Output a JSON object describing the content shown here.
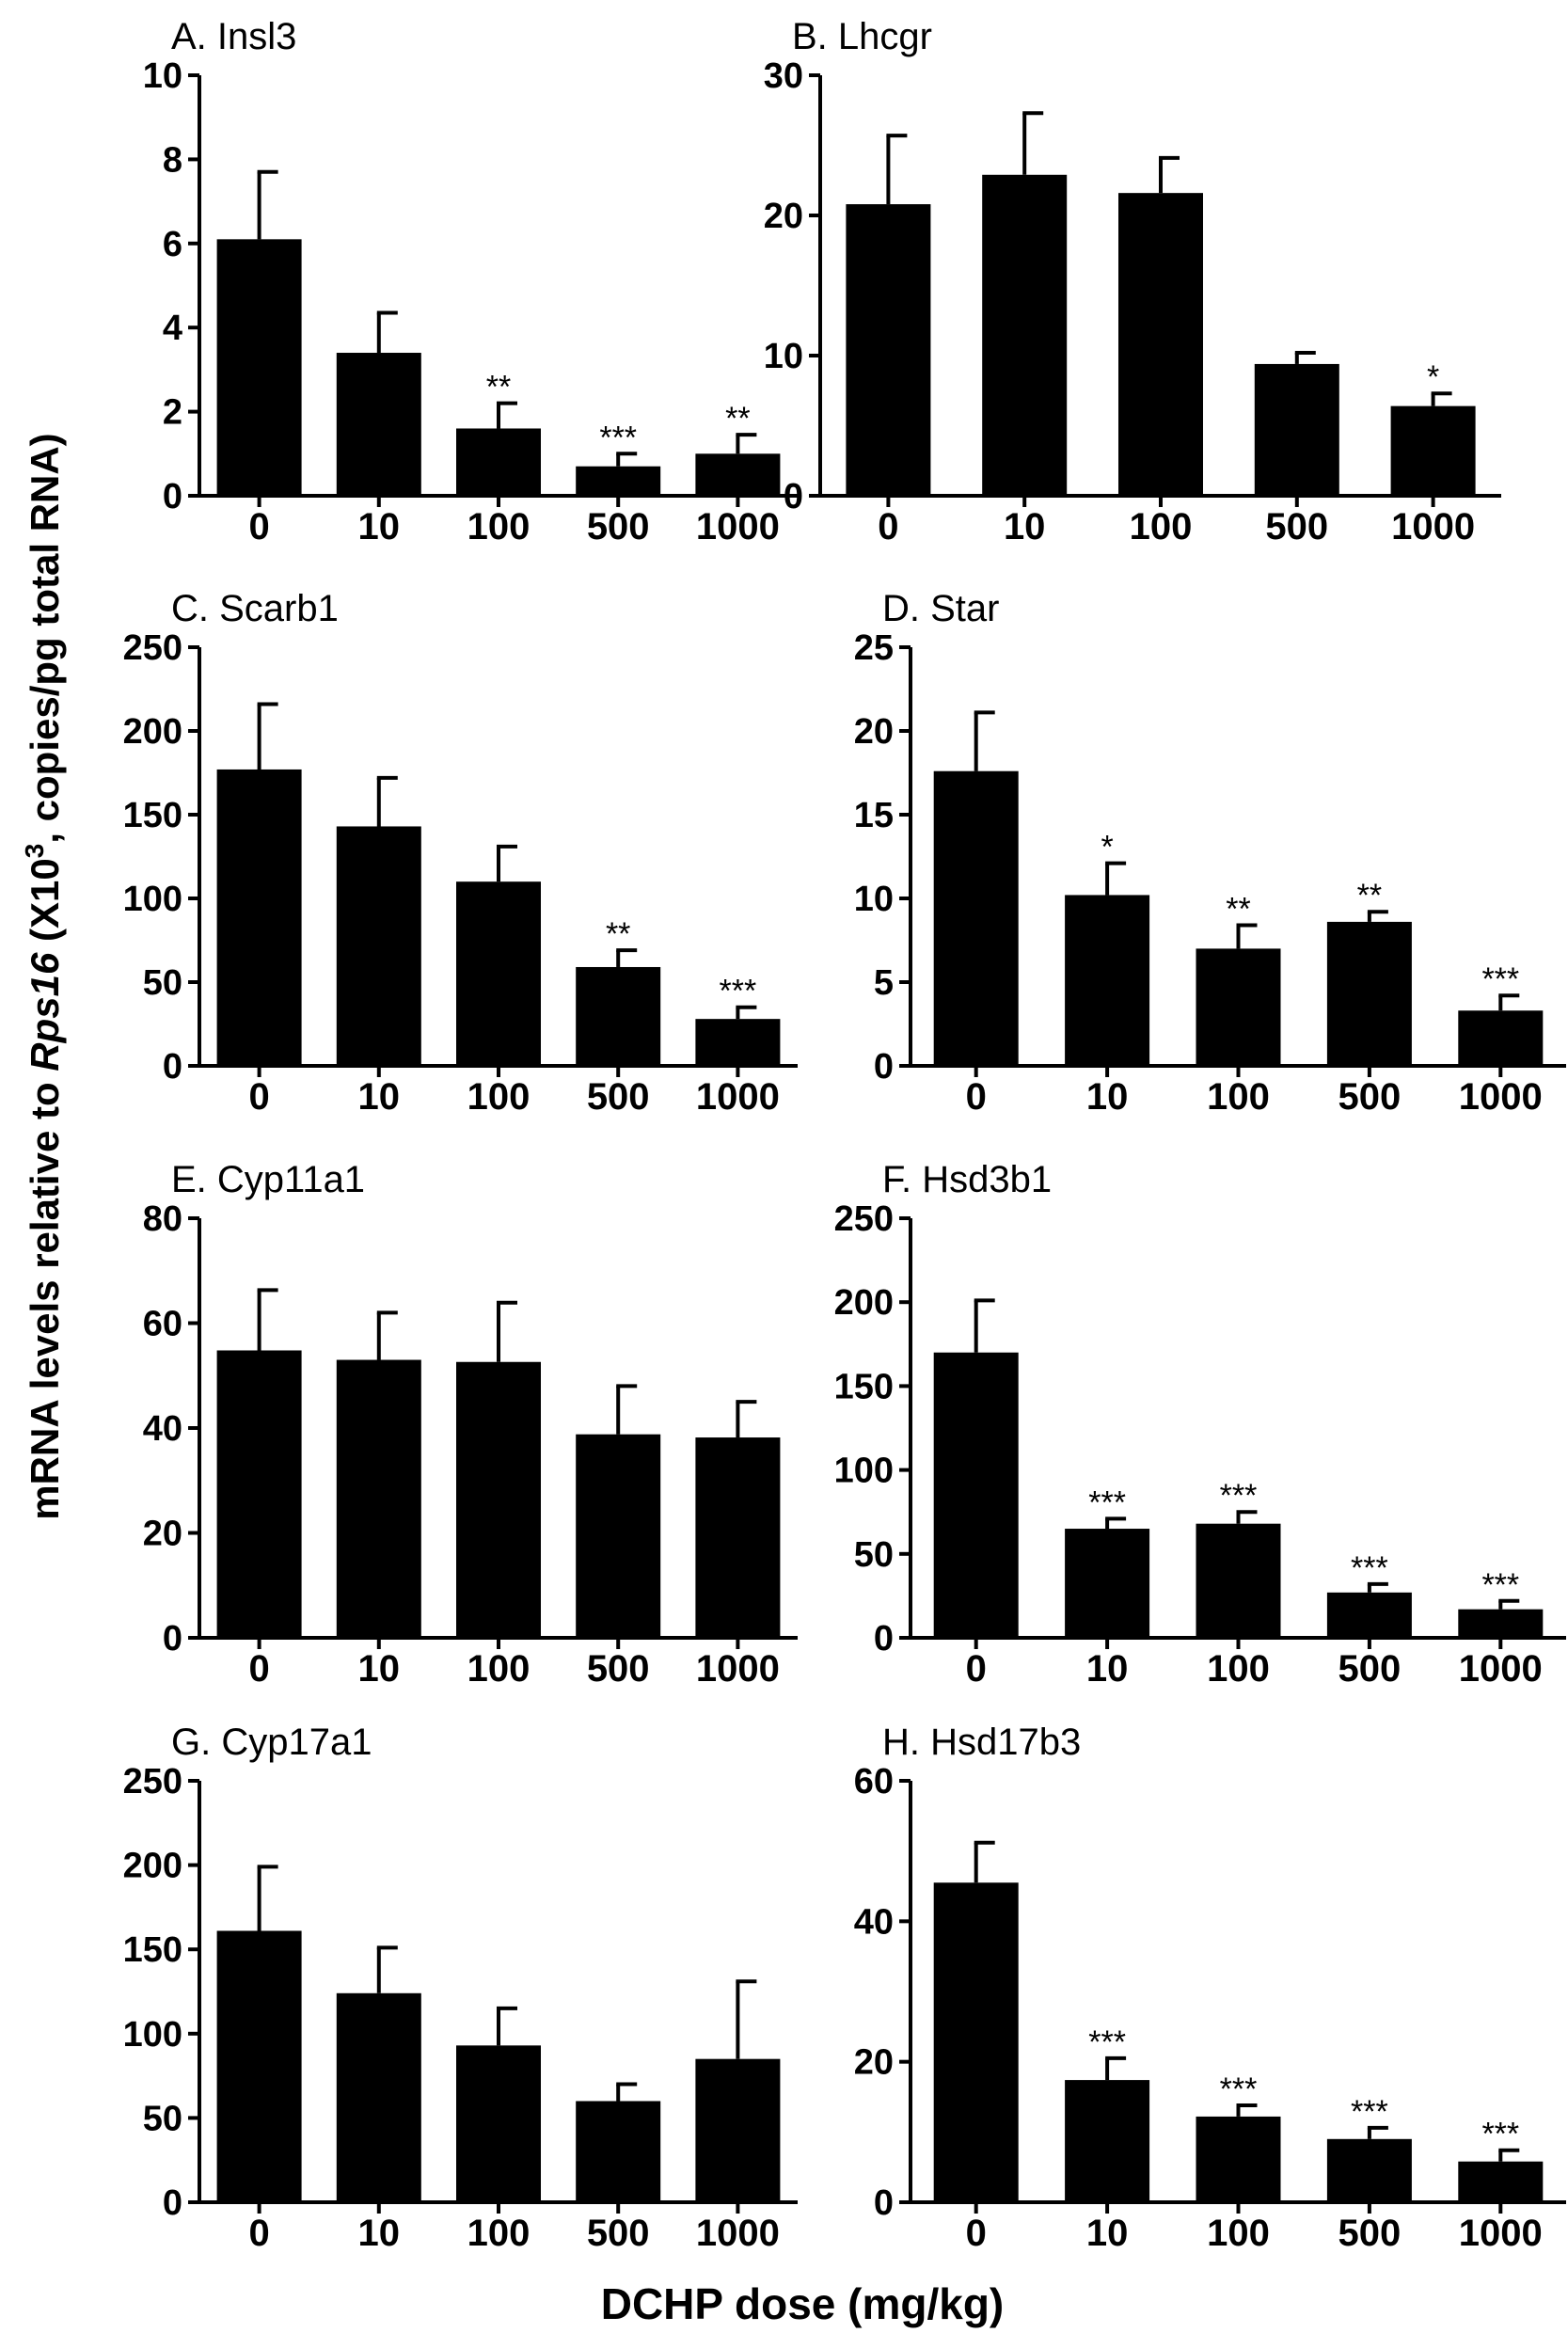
{
  "figure": {
    "y_axis_label": {
      "prefix": "mRNA levels relative to ",
      "gene": "Rps16",
      "mid": " (X10",
      "sup": "3",
      "suffix": ", copies/pg total RNA)"
    },
    "x_axis_label": "DCHP dose (mg/kg)"
  },
  "chart_data": [
    {
      "type": "bar",
      "title": "A. Insl3",
      "categories": [
        "0",
        "10",
        "100",
        "500",
        "1000"
      ],
      "values": [
        6.1,
        3.4,
        1.6,
        0.7,
        1.0
      ],
      "errors": [
        1.6,
        0.95,
        0.6,
        0.3,
        0.45
      ],
      "significance": [
        "",
        "",
        "**",
        "***",
        "**"
      ],
      "ylim": [
        0,
        10
      ],
      "yticks": [
        0,
        2,
        4,
        6,
        8,
        10
      ]
    },
    {
      "type": "bar",
      "title": "B. Lhcgr",
      "categories": [
        "0",
        "10",
        "100",
        "500",
        "1000"
      ],
      "values": [
        20.8,
        22.9,
        21.6,
        9.4,
        6.4
      ],
      "errors": [
        4.9,
        4.4,
        2.5,
        0.8,
        0.9
      ],
      "significance": [
        "",
        "",
        "",
        "",
        "*"
      ],
      "ylim": [
        0,
        30
      ],
      "yticks": [
        0,
        10,
        20,
        30
      ]
    },
    {
      "type": "bar",
      "title": "C. Scarb1",
      "categories": [
        "0",
        "10",
        "100",
        "500",
        "1000"
      ],
      "values": [
        177,
        143,
        110,
        59,
        28
      ],
      "errors": [
        39,
        29,
        21,
        10,
        7
      ],
      "significance": [
        "",
        "",
        "",
        "**",
        "***"
      ],
      "ylim": [
        0,
        250
      ],
      "yticks": [
        0,
        50,
        100,
        150,
        200,
        250
      ]
    },
    {
      "type": "bar",
      "title": "D. Star",
      "categories": [
        "0",
        "10",
        "100",
        "500",
        "1000"
      ],
      "values": [
        17.6,
        10.2,
        7.0,
        8.6,
        3.3
      ],
      "errors": [
        3.5,
        1.9,
        1.4,
        0.6,
        0.9
      ],
      "significance": [
        "",
        "*",
        "**",
        "**",
        "***"
      ],
      "ylim": [
        0,
        25
      ],
      "yticks": [
        0,
        5,
        10,
        15,
        20,
        25
      ]
    },
    {
      "type": "bar",
      "title": "E. Cyp11a1",
      "categories": [
        "0",
        "10",
        "100",
        "500",
        "1000"
      ],
      "values": [
        54.8,
        53.0,
        52.6,
        38.8,
        38.2
      ],
      "errors": [
        11.5,
        9.0,
        11.3,
        9.2,
        6.8
      ],
      "significance": [
        "",
        "",
        "",
        "",
        ""
      ],
      "ylim": [
        0,
        80
      ],
      "yticks": [
        0,
        20,
        40,
        60,
        80
      ]
    },
    {
      "type": "bar",
      "title": "F. Hsd3b1",
      "categories": [
        "0",
        "10",
        "100",
        "500",
        "1000"
      ],
      "values": [
        170,
        65,
        68,
        27,
        17
      ],
      "errors": [
        31,
        6,
        7,
        5,
        5
      ],
      "significance": [
        "",
        "***",
        "***",
        "***",
        "***"
      ],
      "ylim": [
        0,
        250
      ],
      "yticks": [
        0,
        50,
        100,
        150,
        200,
        250
      ]
    },
    {
      "type": "bar",
      "title": "G. Cyp17a1",
      "categories": [
        "0",
        "10",
        "100",
        "500",
        "1000"
      ],
      "values": [
        161,
        124,
        93,
        60,
        85
      ],
      "errors": [
        38,
        27,
        22,
        10,
        46
      ],
      "significance": [
        "",
        "",
        "",
        "",
        ""
      ],
      "ylim": [
        0,
        250
      ],
      "yticks": [
        0,
        50,
        100,
        150,
        200,
        250
      ]
    },
    {
      "type": "bar",
      "title": "H. Hsd17b3",
      "categories": [
        "0",
        "10",
        "100",
        "500",
        "1000"
      ],
      "values": [
        45.5,
        17.4,
        12.2,
        9.0,
        5.8
      ],
      "errors": [
        5.7,
        3.1,
        1.6,
        1.6,
        1.6
      ],
      "significance": [
        "",
        "***",
        "***",
        "***",
        "***"
      ],
      "ylim": [
        0,
        60
      ],
      "yticks": [
        0,
        20,
        40,
        60
      ]
    }
  ]
}
